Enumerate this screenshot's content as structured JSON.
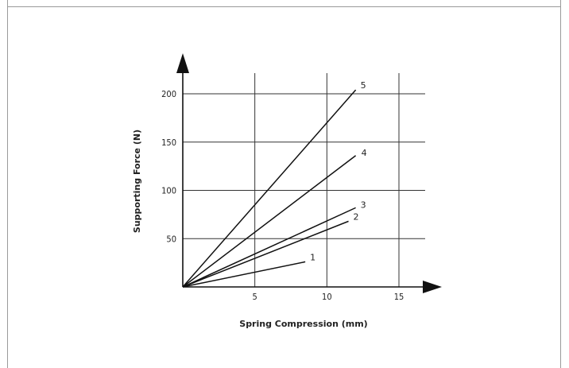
{
  "chart_data": {
    "type": "line",
    "title": "",
    "xlabel": "Spring Compression (mm)",
    "ylabel": "Supporting Force (N)",
    "xlim": [
      0,
      17
    ],
    "ylim": [
      0,
      230
    ],
    "grid": true,
    "x_ticks": [
      5,
      10,
      15
    ],
    "y_ticks": [
      50,
      100,
      150,
      200
    ],
    "series": [
      {
        "name": "1",
        "x": [
          0,
          8.5
        ],
        "y": [
          0,
          26
        ]
      },
      {
        "name": "2",
        "x": [
          0,
          11.5
        ],
        "y": [
          0,
          68
        ]
      },
      {
        "name": "3",
        "x": [
          0,
          12
        ],
        "y": [
          0,
          82
        ]
      },
      {
        "name": "4",
        "x": [
          0,
          12
        ],
        "y": [
          0,
          136
        ]
      },
      {
        "name": "5",
        "x": [
          0,
          12
        ],
        "y": [
          0,
          204
        ]
      }
    ],
    "colors": {
      "lines": "#111111",
      "grid": "#333333"
    }
  }
}
